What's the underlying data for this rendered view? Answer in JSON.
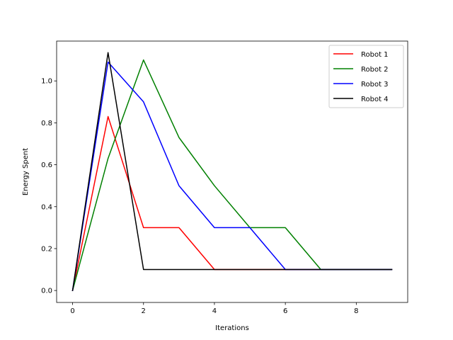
{
  "chart_data": {
    "type": "line",
    "title": "",
    "xlabel": "Iterations",
    "ylabel": "Energy Spent",
    "x": [
      0,
      1,
      2,
      3,
      4,
      5,
      6,
      7,
      8,
      9
    ],
    "xlim": [
      -0.45,
      9.45
    ],
    "ylim": [
      -0.057,
      1.19
    ],
    "xticks": [
      0,
      2,
      4,
      6,
      8
    ],
    "yticks": [
      0.0,
      0.2,
      0.4,
      0.6,
      0.8,
      1.0
    ],
    "xtick_labels": [
      "0",
      "2",
      "4",
      "6",
      "8"
    ],
    "ytick_labels": [
      "0.0",
      "0.2",
      "0.4",
      "0.6",
      "0.8",
      "1.0"
    ],
    "grid": false,
    "legend_position": "top-right",
    "series": [
      {
        "name": "Robot 1",
        "color": "#ff0000",
        "values": [
          0.0,
          0.83,
          0.3,
          0.3,
          0.1,
          0.1,
          0.1,
          0.1,
          0.1,
          0.1
        ]
      },
      {
        "name": "Robot 2",
        "color": "#008000",
        "values": [
          0.0,
          0.63,
          1.1,
          0.73,
          0.5,
          0.3,
          0.3,
          0.1,
          0.1,
          0.1
        ]
      },
      {
        "name": "Robot 3",
        "color": "#0000ff",
        "values": [
          0.0,
          1.09,
          0.9,
          0.5,
          0.3,
          0.3,
          0.1,
          0.1,
          0.1,
          0.1
        ]
      },
      {
        "name": "Robot 4",
        "color": "#000000",
        "values": [
          0.0,
          1.135,
          0.1,
          0.1,
          0.1,
          0.1,
          0.1,
          0.1,
          0.1,
          0.1
        ]
      }
    ]
  }
}
